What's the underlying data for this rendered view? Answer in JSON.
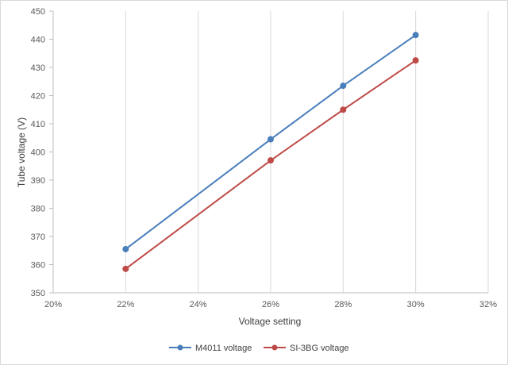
{
  "chart_data": {
    "type": "line",
    "title": "",
    "xlabel": "Voltage setting",
    "ylabel": "Tube voltage (V)",
    "x": [
      0.22,
      0.26,
      0.28,
      0.3
    ],
    "x_ticks": [
      0.2,
      0.22,
      0.24,
      0.26,
      0.28,
      0.3,
      0.32
    ],
    "x_tick_labels": [
      "20%",
      "22%",
      "24%",
      "26%",
      "28%",
      "30%",
      "32%"
    ],
    "xlim": [
      0.2,
      0.32
    ],
    "y_ticks": [
      350,
      360,
      370,
      380,
      390,
      400,
      410,
      420,
      430,
      440,
      450
    ],
    "y_tick_labels": [
      "350",
      "360",
      "370",
      "380",
      "390",
      "400",
      "410",
      "420",
      "430",
      "440",
      "450"
    ],
    "ylim": [
      350,
      450
    ],
    "grid": "vertical",
    "legend_position": "bottom",
    "series": [
      {
        "name": "M4011 voltage",
        "color": "#4a7ebb",
        "values": [
          365.5,
          404.5,
          423.5,
          441.5
        ]
      },
      {
        "name": "SI-3BG voltage",
        "color": "#be4b48",
        "values": [
          358.5,
          397.0,
          415.0,
          432.5
        ]
      }
    ]
  }
}
